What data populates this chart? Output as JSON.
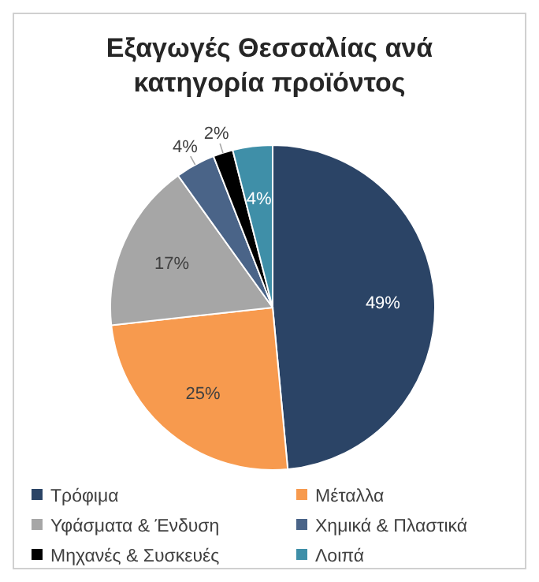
{
  "chart_data": {
    "type": "pie",
    "title": "Εξαγωγές Θεσσαλίας ανά κατηγορία προϊόντος",
    "categories": [
      "Τρόφιμα",
      "Μέταλλα",
      "Υφάσματα & Ένδυση",
      "Χημικά & Πλαστικά",
      "Μηχανές & Συσκευές",
      "Λοιπά"
    ],
    "values": [
      49,
      25,
      17,
      4,
      2,
      4
    ],
    "colors": [
      "#2b4466",
      "#f79a4e",
      "#a6a6a6",
      "#4a6488",
      "#000000",
      "#3f8fa8"
    ],
    "value_labels": [
      "49%",
      "25%",
      "17%",
      "4%",
      "2%",
      "4%"
    ],
    "legend": "bottom"
  }
}
